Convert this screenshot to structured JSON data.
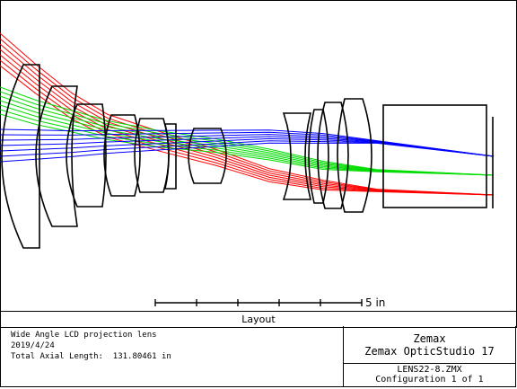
{
  "layout_title": "Layout",
  "scale_bar": {
    "label": "5 in"
  },
  "info": {
    "title": "Wide Angle LCD projection lens",
    "date": "2019/4/24",
    "axial_length": "Total Axial Length:  131.80461 in"
  },
  "vendor": {
    "name": "Zemax",
    "product": "Zemax OpticStudio 17"
  },
  "file": {
    "name": "LENS22-8.ZMX",
    "configuration": "Configuration 1 of 1"
  },
  "colors": {
    "field_1": "#0000ff",
    "field_2": "#00dd00",
    "field_3": "#ff0000",
    "outline": "#000000"
  }
}
